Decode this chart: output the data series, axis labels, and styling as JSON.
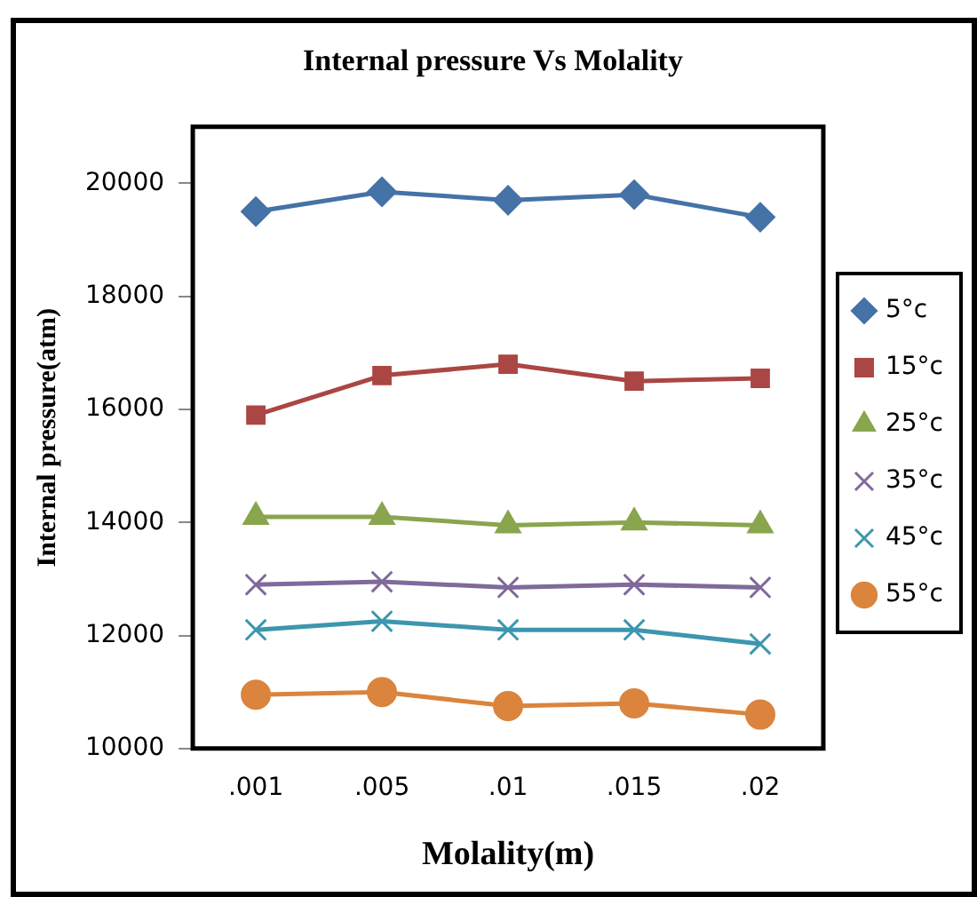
{
  "chart_data": {
    "type": "line",
    "title": "Internal pressure Vs Molality",
    "xlabel": "Molality(m)",
    "ylabel": "Internal pressure(atm)",
    "categories": [
      ".001",
      ".005",
      ".01",
      ".015",
      ".02"
    ],
    "series": [
      {
        "name": "5°c",
        "color": "#4572a7",
        "marker": "diamond",
        "values": [
          19500,
          19850,
          19700,
          19800,
          19400
        ]
      },
      {
        "name": "15°c",
        "color": "#aa4643",
        "marker": "square",
        "values": [
          15900,
          16600,
          16800,
          16500,
          16550
        ]
      },
      {
        "name": "25°c",
        "color": "#89a54e",
        "marker": "triangle",
        "values": [
          14100,
          14100,
          13950,
          14000,
          13950
        ]
      },
      {
        "name": "35°c",
        "color": "#80699b",
        "marker": "cross",
        "values": [
          12900,
          12950,
          12850,
          12900,
          12850
        ]
      },
      {
        "name": "45°c",
        "color": "#3d96ae",
        "marker": "cross",
        "values": [
          12100,
          12250,
          12100,
          12100,
          11850
        ]
      },
      {
        "name": "55°c",
        "color": "#db843d",
        "marker": "circle",
        "values": [
          10950,
          11000,
          10750,
          10800,
          10600
        ]
      }
    ],
    "ylim": [
      10000,
      21000
    ],
    "yticks": [
      {
        "value": 10000,
        "label": "10000"
      },
      {
        "value": 12000,
        "label": "12000"
      },
      {
        "value": 14000,
        "label": "14000"
      },
      {
        "value": 16000,
        "label": "16000"
      },
      {
        "value": 18000,
        "label": "18000"
      },
      {
        "value": 20000,
        "label": "20000"
      }
    ],
    "grid": false,
    "legend": "right",
    "line_style": "solid"
  }
}
